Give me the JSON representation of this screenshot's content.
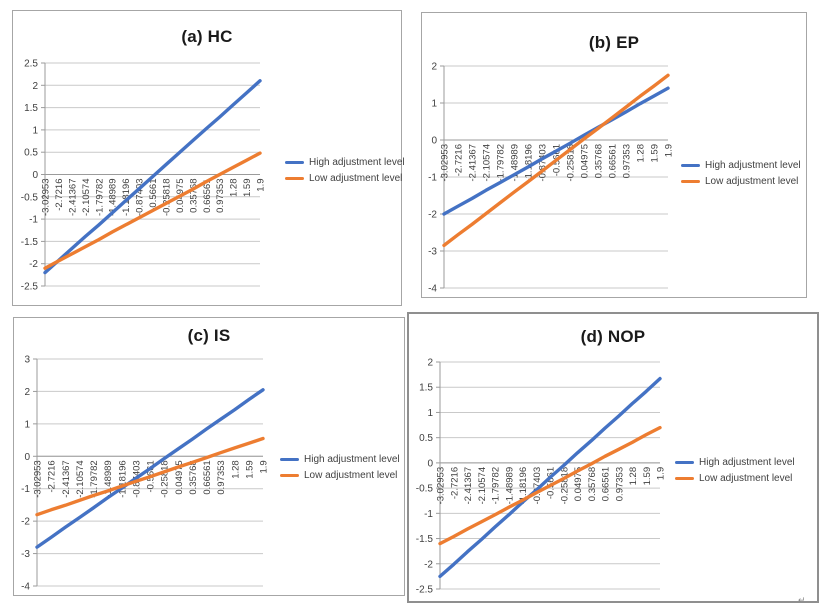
{
  "colors": {
    "high": "#4472C4",
    "low": "#ED7D31",
    "gridline": "#c9c9c9",
    "axis": "#9b9b9b",
    "tick_text": "#404040",
    "title_text": "#1a1a1a"
  },
  "corner_mark": "↵",
  "chart_data": [
    {
      "id": "a",
      "type": "line",
      "title": "(a) HC",
      "xlabel": "",
      "ylabel": "",
      "ylim": [
        -2.5,
        2.5
      ],
      "ystep": 0.5,
      "grid": true,
      "legend_position": "right",
      "categories": [
        "-3.02953",
        "-2.7216",
        "-2.41367",
        "-2.10574",
        "-1.79782",
        "-1.48989",
        "-1.18196",
        "-0.87403",
        "-0.5661",
        "-0.25818",
        "0.04975",
        "0.35768",
        "0.66561",
        "0.97353",
        "1.28",
        "1.59",
        "1.9"
      ],
      "series": [
        {
          "name": "High adjustment level",
          "key": "high",
          "values": [
            -2.2,
            -1.93,
            -1.66,
            -1.39,
            -1.13,
            -0.86,
            -0.59,
            -0.32,
            -0.05,
            0.22,
            0.49,
            0.76,
            1.03,
            1.29,
            1.56,
            1.83,
            2.1
          ]
        },
        {
          "name": "Low adjustment level",
          "key": "low",
          "values": [
            -2.1,
            -1.94,
            -1.78,
            -1.62,
            -1.46,
            -1.29,
            -1.13,
            -0.97,
            -0.81,
            -0.65,
            -0.49,
            -0.33,
            -0.16,
            0.0,
            0.16,
            0.32,
            0.48
          ]
        }
      ]
    },
    {
      "id": "b",
      "type": "line",
      "title": "(b) EP",
      "xlabel": "",
      "ylabel": "",
      "ylim": [
        -4,
        2
      ],
      "ystep": 1,
      "grid": true,
      "legend_position": "right",
      "categories": [
        "-3.02953",
        "-2.7216",
        "-2.41367",
        "-2.10574",
        "-1.79782",
        "-1.48989",
        "-1.18196",
        "-0.87403",
        "-0.5661",
        "-0.25818",
        "0.04975",
        "0.35768",
        "0.66561",
        "0.97353",
        "1.28",
        "1.59",
        "1.9"
      ],
      "series": [
        {
          "name": "High adjustment level",
          "key": "high",
          "values": [
            -2.0,
            -1.79,
            -1.58,
            -1.36,
            -1.15,
            -0.94,
            -0.73,
            -0.51,
            -0.3,
            -0.09,
            0.13,
            0.34,
            0.55,
            0.76,
            0.98,
            1.19,
            1.4
          ]
        },
        {
          "name": "Low adjustment level",
          "key": "low",
          "values": [
            -2.85,
            -2.56,
            -2.28,
            -1.99,
            -1.7,
            -1.41,
            -1.13,
            -0.84,
            -0.55,
            -0.26,
            0.03,
            0.31,
            0.6,
            0.89,
            1.18,
            1.46,
            1.75
          ]
        }
      ]
    },
    {
      "id": "c",
      "type": "line",
      "title": "(c) IS",
      "xlabel": "",
      "ylabel": "",
      "ylim": [
        -4,
        3
      ],
      "ystep": 1,
      "grid": true,
      "legend_position": "right",
      "categories": [
        "-3.02953",
        "-2.7216",
        "-2.41367",
        "-2.10574",
        "-1.79782",
        "-1.48989",
        "-1.18196",
        "-0.87403",
        "-0.5661",
        "-0.25818",
        "0.04975",
        "0.35768",
        "0.66561",
        "0.97353",
        "1.28",
        "1.59",
        "1.9"
      ],
      "series": [
        {
          "name": "High adjustment level",
          "key": "high",
          "values": [
            -2.8,
            -2.5,
            -2.19,
            -1.89,
            -1.59,
            -1.28,
            -0.98,
            -0.68,
            -0.38,
            -0.07,
            0.23,
            0.53,
            0.84,
            1.14,
            1.44,
            1.75,
            2.05
          ]
        },
        {
          "name": "Low adjustment level",
          "key": "low",
          "values": [
            -1.8,
            -1.65,
            -1.51,
            -1.36,
            -1.21,
            -1.07,
            -0.92,
            -0.77,
            -0.63,
            -0.48,
            -0.33,
            -0.19,
            -0.04,
            0.11,
            0.26,
            0.4,
            0.55
          ]
        }
      ]
    },
    {
      "id": "d",
      "type": "line",
      "title": "(d) NOP",
      "xlabel": "",
      "ylabel": "",
      "ylim": [
        -2.5,
        2
      ],
      "ystep": 0.5,
      "grid": true,
      "legend_position": "right",
      "categories": [
        "-3.02953",
        "-2.7216",
        "-2.41367",
        "-2.10574",
        "-1.79782",
        "-1.48989",
        "-1.18196",
        "-0.87403",
        "-0.5661",
        "-0.25818",
        "0.04975",
        "0.35768",
        "0.66561",
        "0.97353",
        "1.28",
        "1.59",
        "1.9"
      ],
      "series": [
        {
          "name": "High adjustment level",
          "key": "high",
          "values": [
            -2.25,
            -2.01,
            -1.76,
            -1.52,
            -1.27,
            -1.03,
            -0.78,
            -0.54,
            -0.29,
            -0.05,
            0.2,
            0.44,
            0.69,
            0.93,
            1.18,
            1.42,
            1.67
          ]
        },
        {
          "name": "Low adjustment level",
          "key": "low",
          "values": [
            -1.6,
            -1.46,
            -1.31,
            -1.17,
            -1.03,
            -0.88,
            -0.74,
            -0.59,
            -0.45,
            -0.31,
            -0.16,
            -0.02,
            0.13,
            0.27,
            0.41,
            0.56,
            0.7
          ]
        }
      ]
    }
  ]
}
